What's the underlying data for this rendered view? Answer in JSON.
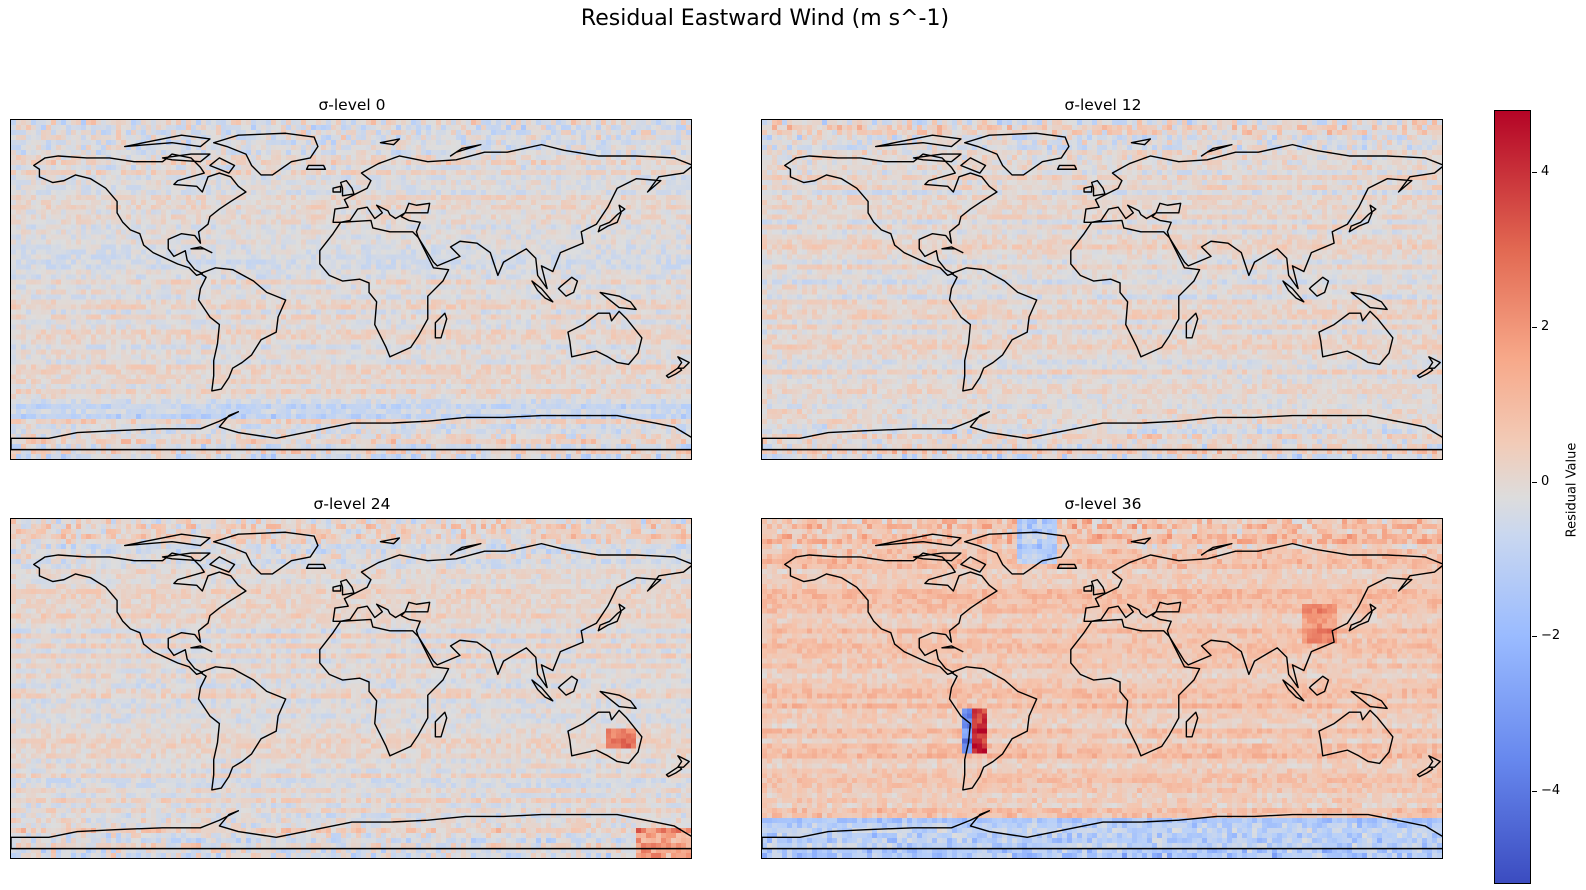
{
  "figure": {
    "title": "Residual Eastward Wind (m s^-1)"
  },
  "panels": [
    {
      "title": "σ-level 0"
    },
    {
      "title": "σ-level 12"
    },
    {
      "title": "σ-level 24"
    },
    {
      "title": "σ-level 36"
    }
  ],
  "colorbar": {
    "label": "Residual Value",
    "colormap": "coolwarm",
    "range": [
      -5.2,
      4.8
    ],
    "ticks": [
      "4",
      "2",
      "0",
      "−2",
      "−4"
    ],
    "tick_values": [
      4,
      2,
      0,
      -2,
      -4
    ]
  },
  "map": {
    "projection": "PlateCarree",
    "coastline_color": "#000000"
  }
}
